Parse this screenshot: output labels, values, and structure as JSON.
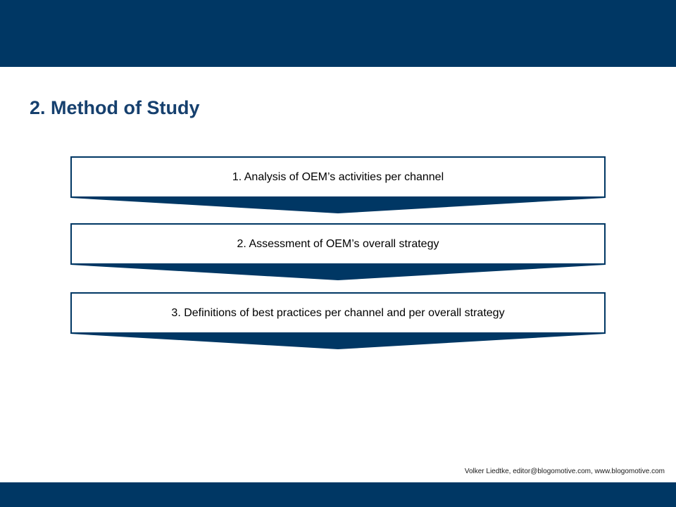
{
  "slide": {
    "title": "2. Method of Study",
    "footer_credit": "Volker Liedtke, editor@blogomotive.com, www.blogomotive.com"
  },
  "steps": [
    {
      "label": "1. Analysis of OEM’s activities per channel"
    },
    {
      "label": "2. Assessment of OEM’s overall strategy"
    },
    {
      "label": "3. Definitions of best practices per channel and per overall strategy"
    }
  ],
  "colors": {
    "banner": "#003764",
    "title": "#16406e",
    "box_border": "#003764",
    "arrow": "#003764"
  }
}
